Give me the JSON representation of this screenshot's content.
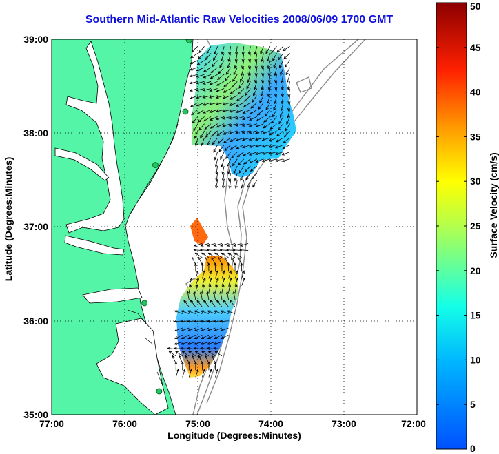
{
  "title": "Southern Mid-Atlantic Raw Velocities 2008/06/09 1700 GMT",
  "axes": {
    "xlabel": "Longitude (Degrees:Minutes)",
    "ylabel": "Latitude (Degrees:Minutes)",
    "x_ticks": [
      "77:00",
      "76:00",
      "75:00",
      "74:00",
      "73:00",
      "72:00"
    ],
    "y_ticks": [
      "39:00",
      "38:00",
      "37:00",
      "36:00",
      "35:00"
    ],
    "xlim": [
      -77,
      -72
    ],
    "ylim": [
      35,
      39
    ],
    "grid": "dotted"
  },
  "colorbar": {
    "label": "Surface Velocity (cm/s)",
    "ticks": [
      "0",
      "5",
      "10",
      "15",
      "20",
      "25",
      "30",
      "35",
      "40",
      "45",
      "50"
    ],
    "range": [
      0,
      50
    ],
    "colormap": "jet"
  },
  "colors": {
    "title": "#1010e0",
    "land": "#55f5a8",
    "bathymetry": "#909090",
    "station_marker": "#22c55e"
  },
  "chart_data": {
    "type": "vector-map",
    "title": "Southern Mid-Atlantic Raw Velocities 2008/06/09 1700 GMT",
    "xlabel": "Longitude (Degrees:Minutes)",
    "ylabel": "Latitude (Degrees:Minutes)",
    "xlim": [
      -77,
      -72
    ],
    "ylim": [
      35,
      39
    ],
    "stations": [
      {
        "lon": -75.12,
        "lat": 38.99
      },
      {
        "lon": -75.17,
        "lat": 38.23
      },
      {
        "lon": -75.58,
        "lat": 37.66
      },
      {
        "lon": -75.73,
        "lat": 36.19
      },
      {
        "lon": -75.53,
        "lat": 35.25
      }
    ],
    "velocity_regions": [
      {
        "region": "north",
        "lon_range": [
          -75.0,
          -73.7
        ],
        "lat_range": [
          37.5,
          38.95
        ],
        "speed_range_cm_s": [
          5,
          27
        ]
      },
      {
        "region": "south",
        "lon_range": [
          -75.3,
          -74.3
        ],
        "lat_range": [
          35.4,
          36.9
        ],
        "speed_range_cm_s": [
          5,
          37
        ]
      }
    ]
  }
}
